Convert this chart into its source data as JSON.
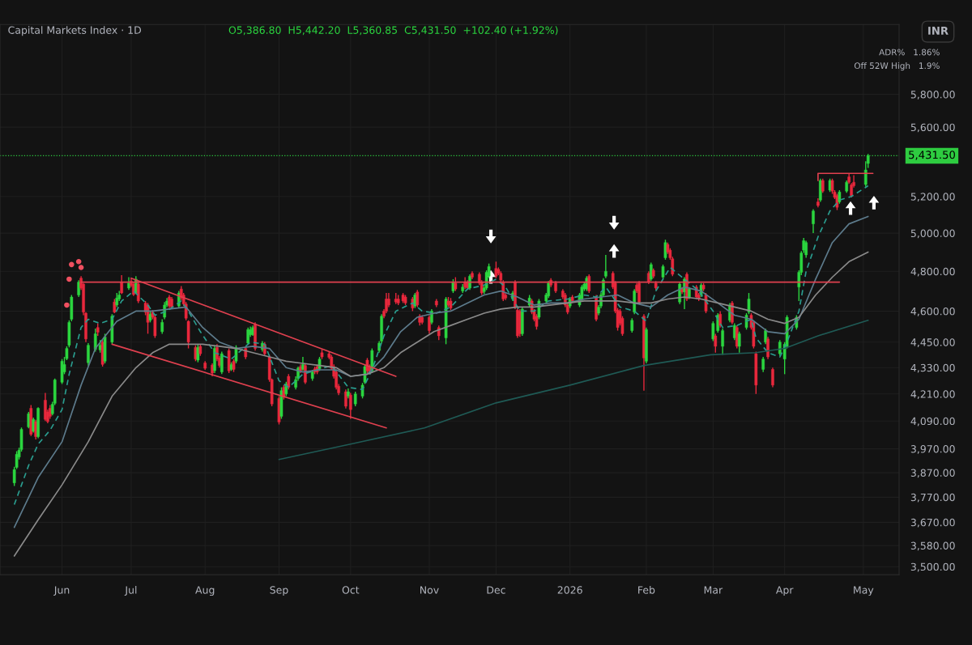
{
  "chart_data": {
    "type": "candlestick",
    "title": "Capital Markets Index · 1D",
    "subtitle": "O5,386.80  H5,442.20  L5,360.85  C5,431.50  +102.40 (+1.92%)",
    "annotations": [
      "ADR%   1.86%",
      "Off 52W High   1.9%",
      "INR"
    ],
    "x": [
      "2025-05-13",
      "2025-05-14",
      "2025-05-15",
      "2025-05-16",
      "2025-05-19",
      "2025-05-20",
      "2025-05-21",
      "2025-05-22",
      "2025-05-23",
      "2025-05-26",
      "2025-05-27",
      "2025-05-28",
      "2025-05-29",
      "2025-05-30",
      "2025-06-02",
      "2025-06-03",
      "2025-06-04",
      "2025-06-05",
      "2025-06-06",
      "2025-06-09",
      "2025-06-10",
      "2025-06-11",
      "2025-06-12",
      "2025-06-13",
      "2025-06-16",
      "2025-06-17",
      "2025-06-18",
      "2025-06-19",
      "2025-06-20",
      "2025-06-23",
      "2025-06-24",
      "2025-06-25",
      "2025-06-26",
      "2025-06-27",
      "2025-06-30",
      "2025-07-01",
      "2025-07-02",
      "2025-07-03",
      "2025-07-04",
      "2025-07-07",
      "2025-07-08",
      "2025-07-09",
      "2025-07-10",
      "2025-07-11",
      "2025-07-14",
      "2025-07-15",
      "2025-07-16",
      "2025-07-17",
      "2025-07-18",
      "2025-07-21",
      "2025-07-22",
      "2025-07-23",
      "2025-07-24",
      "2025-07-25",
      "2025-07-28",
      "2025-07-29",
      "2025-07-30",
      "2025-08-01",
      "2025-08-04",
      "2025-08-05",
      "2025-08-06",
      "2025-08-07",
      "2025-08-08",
      "2025-08-11",
      "2025-08-12",
      "2025-08-13",
      "2025-08-14",
      "2025-08-18",
      "2025-08-19",
      "2025-08-20",
      "2025-08-21",
      "2025-08-22",
      "2025-08-25",
      "2025-08-26",
      "2025-08-28",
      "2025-08-29",
      "2025-09-01",
      "2025-09-02",
      "2025-09-03",
      "2025-09-04",
      "2025-09-05",
      "2025-09-08",
      "2025-09-09",
      "2025-09-10",
      "2025-09-11",
      "2025-09-12",
      "2025-09-15",
      "2025-09-16",
      "2025-09-17",
      "2025-09-18",
      "2025-09-19",
      "2025-09-22",
      "2025-09-23",
      "2025-09-24",
      "2025-09-25",
      "2025-09-26",
      "2025-09-29",
      "2025-09-30",
      "2025-10-01",
      "2025-10-03",
      "2025-10-06",
      "2025-10-07",
      "2025-10-08",
      "2025-10-09",
      "2025-10-10",
      "2025-10-13",
      "2025-10-14",
      "2025-10-15",
      "2025-10-16",
      "2025-10-17",
      "2025-10-20",
      "2025-10-21",
      "2025-10-23",
      "2025-10-24",
      "2025-10-27",
      "2025-10-28",
      "2025-10-29",
      "2025-10-30",
      "2025-10-31",
      "2025-11-03",
      "2025-11-04",
      "2025-11-06",
      "2025-11-07",
      "2025-11-10",
      "2025-11-11",
      "2025-11-12",
      "2025-11-13",
      "2025-11-14",
      "2025-11-17",
      "2025-11-18",
      "2025-11-19",
      "2025-11-20",
      "2025-11-21",
      "2025-11-24",
      "2025-11-25",
      "2025-11-26",
      "2025-11-27",
      "2025-11-28",
      "2025-12-01",
      "2025-12-02",
      "2025-12-03",
      "2025-12-04",
      "2025-12-05",
      "2025-12-08",
      "2025-12-09",
      "2025-12-10",
      "2025-12-11",
      "2025-12-12",
      "2025-12-15",
      "2025-12-16",
      "2025-12-17",
      "2025-12-18",
      "2025-12-19",
      "2025-12-22",
      "2025-12-23",
      "2025-12-24",
      "2025-12-26",
      "2025-12-29",
      "2025-12-30",
      "2025-12-31",
      "2026-01-01",
      "2026-01-02",
      "2026-01-05",
      "2026-01-06",
      "2026-01-07",
      "2026-01-08",
      "2026-01-09",
      "2026-01-12",
      "2026-01-13",
      "2026-01-14",
      "2026-01-15",
      "2026-01-16",
      "2026-01-19",
      "2026-01-20",
      "2026-01-21",
      "2026-01-22",
      "2026-01-23",
      "2026-01-27",
      "2026-01-28",
      "2026-01-29",
      "2026-01-30",
      "2026-02-01",
      "2026-02-02",
      "2026-02-03",
      "2026-02-04",
      "2026-02-05",
      "2026-02-06",
      "2026-02-09",
      "2026-02-10",
      "2026-02-11",
      "2026-02-12",
      "2026-02-13",
      "2026-02-16",
      "2026-02-17",
      "2026-02-18",
      "2026-02-19",
      "2026-02-20",
      "2026-02-23",
      "2026-02-24",
      "2026-02-25",
      "2026-02-26",
      "2026-02-27",
      "2026-03-02",
      "2026-03-03",
      "2026-03-04",
      "2026-03-05",
      "2026-03-06",
      "2026-03-09",
      "2026-03-10",
      "2026-03-11",
      "2026-03-12",
      "2026-03-13",
      "2026-03-16",
      "2026-03-17",
      "2026-03-18",
      "2026-03-19",
      "2026-03-20",
      "2026-03-23",
      "2026-03-24",
      "2026-03-25",
      "2026-03-27",
      "2026-03-30",
      "2026-04-01",
      "2026-04-02",
      "2026-04-06",
      "2026-04-07",
      "2026-04-08",
      "2026-04-09",
      "2026-04-10",
      "2026-04-13",
      "2026-04-15",
      "2026-04-16",
      "2026-04-17",
      "2026-04-20",
      "2026-04-21",
      "2026-04-22",
      "2026-04-23",
      "2026-04-24",
      "2026-04-27",
      "2026-04-28",
      "2026-04-29",
      "2026-04-30",
      "2026-05-05",
      "2026-05-06"
    ],
    "ohlc": [
      [
        3828,
        3895,
        3815,
        3883
      ],
      [
        3892,
        3960,
        3885,
        3947
      ],
      [
        3935,
        3975,
        3925,
        3964
      ],
      [
        3967,
        4062,
        3958,
        4054
      ],
      [
        4064,
        4130,
        4058,
        4122
      ],
      [
        4146,
        4160,
        4025,
        4032
      ],
      [
        4045,
        4105,
        4040,
        4097
      ],
      [
        4087,
        4095,
        4010,
        4022
      ],
      [
        4022,
        4150,
        4015,
        4146
      ],
      [
        4182,
        4215,
        4090,
        4097
      ],
      [
        4130,
        4140,
        4080,
        4087
      ],
      [
        4146,
        4160,
        4100,
        4110
      ],
      [
        4122,
        4175,
        4115,
        4164
      ],
      [
        4168,
        4280,
        4160,
        4274
      ],
      [
        4263,
        4370,
        4255,
        4360
      ],
      [
        4310,
        4380,
        4300,
        4345
      ],
      [
        4372,
        4430,
        4365,
        4420
      ],
      [
        4435,
        4555,
        4425,
        4545
      ],
      [
        4560,
        4680,
        4550,
        4670
      ],
      [
        4680,
        4755,
        4670,
        4745
      ],
      [
        4765,
        4775,
        4705,
        4715
      ],
      [
        4735,
        4740,
        4580,
        4595
      ],
      [
        4590,
        4595,
        4450,
        4465
      ],
      [
        4353,
        4445,
        4340,
        4435
      ],
      [
        4415,
        4515,
        4405,
        4490
      ],
      [
        4520,
        4540,
        4480,
        4497
      ],
      [
        4413,
        4460,
        4400,
        4435
      ],
      [
        4450,
        4460,
        4335,
        4345
      ],
      [
        4360,
        4490,
        4350,
        4475
      ],
      [
        4450,
        4585,
        4440,
        4575
      ],
      [
        4645,
        4660,
        4590,
        4595
      ],
      [
        4630,
        4690,
        4620,
        4665
      ],
      [
        4660,
        4700,
        4650,
        4680
      ],
      [
        4745,
        4780,
        4685,
        4690
      ],
      [
        4715,
        4770,
        4705,
        4740
      ],
      [
        4750,
        4765,
        4720,
        4728
      ],
      [
        4735,
        4745,
        4675,
        4682
      ],
      [
        4690,
        4775,
        4685,
        4760
      ],
      [
        4735,
        4750,
        4640,
        4650
      ],
      [
        4640,
        4650,
        4580,
        4595
      ],
      [
        4630,
        4640,
        4490,
        4545
      ],
      [
        4555,
        4600,
        4545,
        4585
      ],
      [
        4595,
        4605,
        4560,
        4570
      ],
      [
        4570,
        4580,
        4470,
        4480
      ],
      [
        4500,
        4560,
        4490,
        4545
      ],
      [
        4570,
        4645,
        4560,
        4630
      ],
      [
        4630,
        4665,
        4620,
        4650
      ],
      [
        4670,
        4680,
        4615,
        4625
      ],
      [
        4660,
        4670,
        4610,
        4620
      ],
      [
        4625,
        4700,
        4615,
        4690
      ],
      [
        4710,
        4725,
        4655,
        4665
      ],
      [
        4680,
        4690,
        4625,
        4635
      ],
      [
        4635,
        4645,
        4555,
        4565
      ],
      [
        4550,
        4555,
        4420,
        4450
      ],
      [
        4425,
        4435,
        4360,
        4370
      ],
      [
        4365,
        4440,
        4355,
        4425
      ],
      [
        4430,
        4440,
        4385,
        4395
      ],
      [
        4352,
        4360,
        4320,
        4327
      ],
      [
        4342,
        4350,
        4290,
        4305
      ],
      [
        4316,
        4430,
        4305,
        4420
      ],
      [
        4425,
        4440,
        4360,
        4370
      ],
      [
        4375,
        4385,
        4330,
        4340
      ],
      [
        4310,
        4405,
        4300,
        4395
      ],
      [
        4410,
        4420,
        4305,
        4315
      ],
      [
        4322,
        4355,
        4315,
        4345
      ],
      [
        4360,
        4370,
        4310,
        4322
      ],
      [
        4360,
        4435,
        4350,
        4425
      ],
      [
        4420,
        4430,
        4370,
        4380
      ],
      [
        4445,
        4520,
        4440,
        4510
      ],
      [
        4485,
        4525,
        4475,
        4510
      ],
      [
        4485,
        4530,
        4480,
        4520
      ],
      [
        4535,
        4545,
        4410,
        4420
      ],
      [
        4415,
        4455,
        4405,
        4445
      ],
      [
        4440,
        4450,
        4385,
        4395
      ],
      [
        4380,
        4390,
        4265,
        4275
      ],
      [
        4275,
        4280,
        4155,
        4165
      ],
      [
        4190,
        4200,
        4075,
        4085
      ],
      [
        4110,
        4240,
        4100,
        4225
      ],
      [
        4240,
        4250,
        4185,
        4195
      ],
      [
        4210,
        4265,
        4200,
        4255
      ],
      [
        4290,
        4300,
        4230,
        4240
      ],
      [
        4240,
        4290,
        4230,
        4275
      ],
      [
        4280,
        4335,
        4270,
        4328
      ],
      [
        4335,
        4345,
        4305,
        4315
      ],
      [
        4322,
        4380,
        4315,
        4345
      ],
      [
        4340,
        4350,
        4255,
        4263
      ],
      [
        4280,
        4320,
        4270,
        4310
      ],
      [
        4325,
        4335,
        4300,
        4310
      ],
      [
        4335,
        4345,
        4300,
        4310
      ],
      [
        4325,
        4380,
        4315,
        4370
      ],
      [
        4400,
        4415,
        4370,
        4380
      ],
      [
        4395,
        4405,
        4370,
        4378
      ],
      [
        4380,
        4390,
        4320,
        4327
      ],
      [
        4335,
        4345,
        4280,
        4290
      ],
      [
        4310,
        4320,
        4230,
        4240
      ],
      [
        4245,
        4255,
        4205,
        4215
      ],
      [
        4220,
        4230,
        4145,
        4155
      ],
      [
        4200,
        4235,
        4190,
        4220
      ],
      [
        4205,
        4215,
        4100,
        4140
      ],
      [
        4165,
        4220,
        4155,
        4210
      ],
      [
        4200,
        4260,
        4190,
        4250
      ],
      [
        4263,
        4345,
        4255,
        4335
      ],
      [
        4365,
        4375,
        4305,
        4315
      ],
      [
        4335,
        4345,
        4300,
        4310
      ],
      [
        4315,
        4420,
        4305,
        4410
      ],
      [
        4410,
        4455,
        4400,
        4445
      ],
      [
        4455,
        4585,
        4445,
        4575
      ],
      [
        4600,
        4610,
        4565,
        4575
      ],
      [
        4660,
        4690,
        4590,
        4600
      ],
      [
        4660,
        4690,
        4620,
        4630
      ],
      [
        4660,
        4690,
        4635,
        4645
      ],
      [
        4660,
        4680,
        4630,
        4640
      ],
      [
        4680,
        4690,
        4640,
        4650
      ],
      [
        4670,
        4680,
        4630,
        4640
      ],
      [
        4660,
        4670,
        4600,
        4615
      ],
      [
        4625,
        4690,
        4615,
        4680
      ],
      [
        4695,
        4705,
        4620,
        4630
      ],
      [
        4575,
        4585,
        4530,
        4545
      ],
      [
        4570,
        4580,
        4535,
        4545
      ],
      [
        4570,
        4580,
        4490,
        4505
      ],
      [
        4545,
        4610,
        4535,
        4600
      ],
      [
        4650,
        4660,
        4620,
        4630
      ],
      [
        4520,
        4530,
        4460,
        4480
      ],
      [
        4470,
        4670,
        4440,
        4660
      ],
      [
        4650,
        4670,
        4620,
        4630
      ],
      [
        4650,
        4665,
        4605,
        4615
      ],
      [
        4700,
        4760,
        4690,
        4745
      ],
      [
        4740,
        4770,
        4700,
        4710
      ],
      [
        4700,
        4735,
        4690,
        4720
      ],
      [
        4745,
        4770,
        4710,
        4720
      ],
      [
        4745,
        4755,
        4705,
        4715
      ],
      [
        4715,
        4785,
        4705,
        4775
      ],
      [
        4790,
        4800,
        4760,
        4770
      ],
      [
        4785,
        4795,
        4730,
        4740
      ],
      [
        4745,
        4755,
        4680,
        4690
      ],
      [
        4697,
        4725,
        4685,
        4715
      ],
      [
        4715,
        4805,
        4705,
        4795
      ],
      [
        4775,
        4840,
        4765,
        4825
      ],
      [
        4815,
        4850,
        4765,
        4775
      ],
      [
        4810,
        4820,
        4780,
        4790
      ],
      [
        4790,
        4800,
        4745,
        4755
      ],
      [
        4745,
        4755,
        4650,
        4660
      ],
      [
        4680,
        4690,
        4655,
        4665
      ],
      [
        4660,
        4700,
        4650,
        4690
      ],
      [
        4745,
        4755,
        4610,
        4620
      ],
      [
        4605,
        4615,
        4470,
        4480
      ],
      [
        4600,
        4610,
        4475,
        4490
      ],
      [
        4490,
        4620,
        4480,
        4610
      ],
      [
        4630,
        4680,
        4620,
        4665
      ],
      [
        4650,
        4660,
        4585,
        4595
      ],
      [
        4600,
        4610,
        4550,
        4560
      ],
      [
        4575,
        4585,
        4510,
        4525
      ],
      [
        4570,
        4660,
        4560,
        4650
      ],
      [
        4650,
        4690,
        4640,
        4680
      ],
      [
        4675,
        4750,
        4665,
        4740
      ],
      [
        4755,
        4765,
        4720,
        4730
      ],
      [
        4740,
        4750,
        4690,
        4700
      ],
      [
        4700,
        4710,
        4660,
        4670
      ],
      [
        4680,
        4690,
        4620,
        4630
      ],
      [
        4630,
        4640,
        4585,
        4595
      ],
      [
        4625,
        4670,
        4615,
        4660
      ],
      [
        4670,
        4680,
        4640,
        4650
      ],
      [
        4630,
        4690,
        4620,
        4680
      ],
      [
        4660,
        4730,
        4650,
        4720
      ],
      [
        4710,
        4745,
        4700,
        4735
      ],
      [
        4710,
        4775,
        4700,
        4765
      ],
      [
        4775,
        4785,
        4690,
        4700
      ],
      [
        4670,
        4680,
        4550,
        4560
      ],
      [
        4590,
        4630,
        4580,
        4620
      ],
      [
        4625,
        4690,
        4615,
        4680
      ],
      [
        4680,
        4765,
        4670,
        4755
      ],
      [
        4775,
        4885,
        4765,
        4800
      ],
      [
        4790,
        4800,
        4710,
        4720
      ],
      [
        4740,
        4750,
        4590,
        4600
      ],
      [
        4605,
        4615,
        4505,
        4520
      ],
      [
        4600,
        4610,
        4530,
        4540
      ],
      [
        4565,
        4575,
        4480,
        4490
      ],
      [
        4505,
        4565,
        4495,
        4555
      ],
      [
        4595,
        4710,
        4585,
        4700
      ],
      [
        4730,
        4740,
        4690,
        4700
      ],
      [
        4740,
        4750,
        4635,
        4645
      ],
      [
        4575,
        4585,
        4225,
        4375
      ],
      [
        4360,
        4520,
        4350,
        4510
      ],
      [
        4790,
        4800,
        4735,
        4745
      ],
      [
        4760,
        4845,
        4750,
        4835
      ],
      [
        4805,
        4815,
        4765,
        4775
      ],
      [
        4740,
        4750,
        4705,
        4715
      ],
      [
        4770,
        4835,
        4760,
        4825
      ],
      [
        4870,
        4965,
        4860,
        4950
      ],
      [
        4940,
        4950,
        4890,
        4900
      ],
      [
        4910,
        4920,
        4860,
        4870
      ],
      [
        4865,
        4875,
        4775,
        4785
      ],
      [
        4645,
        4745,
        4635,
        4735
      ],
      [
        4710,
        4720,
        4685,
        4695
      ],
      [
        4695,
        4770,
        4610,
        4760
      ],
      [
        4785,
        4795,
        4650,
        4660
      ],
      [
        4670,
        4720,
        4660,
        4710
      ],
      [
        4720,
        4730,
        4660,
        4670
      ],
      [
        4680,
        4690,
        4650,
        4660
      ],
      [
        4680,
        4740,
        4670,
        4730
      ],
      [
        4730,
        4740,
        4700,
        4710
      ],
      [
        4680,
        4690,
        4590,
        4600
      ],
      [
        4465,
        4550,
        4455,
        4540
      ],
      [
        4480,
        4490,
        4400,
        4430
      ],
      [
        4505,
        4590,
        4495,
        4580
      ],
      [
        4585,
        4600,
        4520,
        4530
      ],
      [
        4430,
        4515,
        4390,
        4505
      ],
      [
        4555,
        4640,
        4545,
        4630
      ],
      [
        4640,
        4650,
        4535,
        4545
      ],
      [
        4470,
        4540,
        4460,
        4530
      ],
      [
        4520,
        4530,
        4420,
        4430
      ],
      [
        4430,
        4500,
        4400,
        4490
      ],
      [
        4520,
        4590,
        4510,
        4580
      ],
      [
        4595,
        4690,
        4585,
        4660
      ],
      [
        4580,
        4590,
        4510,
        4520
      ],
      [
        4545,
        4555,
        4420,
        4430
      ],
      [
        4395,
        4405,
        4210,
        4250
      ],
      [
        4322,
        4380,
        4310,
        4370
      ],
      [
        4450,
        4515,
        4440,
        4505
      ],
      [
        4465,
        4475,
        4370,
        4380
      ],
      [
        4322,
        4330,
        4240,
        4250
      ],
      [
        4395,
        4460,
        4385,
        4450
      ],
      [
        4370,
        4450,
        4300,
        4440
      ],
      [
        4430,
        4580,
        4420,
        4570
      ],
      [
        4520,
        4580,
        4510,
        4570
      ],
      [
        4720,
        4805,
        4650,
        4795
      ],
      [
        4795,
        4905,
        4780,
        4895
      ],
      [
        4910,
        4975,
        4895,
        4960
      ],
      [
        4885,
        4960,
        4870,
        4950
      ],
      [
        5050,
        5130,
        5000,
        5120
      ],
      [
        5170,
        5190,
        5140,
        5150
      ],
      [
        5180,
        5300,
        5170,
        5290
      ],
      [
        5290,
        5300,
        5220,
        5230
      ],
      [
        5235,
        5300,
        5225,
        5290
      ],
      [
        5290,
        5300,
        5215,
        5230
      ],
      [
        5225,
        5235,
        5185,
        5195
      ],
      [
        5205,
        5215,
        5125,
        5140
      ],
      [
        5170,
        5235,
        5160,
        5225
      ],
      [
        5230,
        5290,
        5220,
        5280
      ],
      [
        5310,
        5330,
        5270,
        5280
      ],
      [
        5265,
        5275,
        5195,
        5205
      ],
      [
        5280,
        5320,
        5250,
        5260
      ],
      [
        5267,
        5400,
        5255,
        5350
      ],
      [
        5386.8,
        5442.2,
        5360.85,
        5431.5
      ]
    ],
    "series": [
      {
        "type": "line",
        "color": "#2a9d8f",
        "line_style": "dashed",
        "x": [
          "2025-05-13",
          "2025-05-19",
          "2025-05-23",
          "2025-05-28",
          "2025-06-02",
          "2025-06-05",
          "2025-06-10",
          "2025-06-13",
          "2025-06-18",
          "2025-06-23",
          "2025-06-27",
          "2025-07-02",
          "2025-07-08",
          "2025-07-11",
          "2025-07-16",
          "2025-07-22",
          "2025-07-25",
          "2025-07-30",
          "2025-08-05",
          "2025-08-12",
          "2025-08-20",
          "2025-08-26",
          "2025-09-01",
          "2025-09-05",
          "2025-09-11",
          "2025-09-17",
          "2025-09-23",
          "2025-09-30",
          "2025-10-06",
          "2025-10-10",
          "2025-10-15",
          "2025-10-20",
          "2025-10-27",
          "2025-10-31",
          "2025-11-06",
          "2025-11-12",
          "2025-11-19",
          "2025-11-26",
          "2025-12-01",
          "2025-12-05",
          "2025-12-11",
          "2025-12-17",
          "2025-12-23",
          "2025-12-31",
          "2026-01-07",
          "2026-01-12",
          "2026-01-16",
          "2026-01-22",
          "2026-01-28",
          "2026-02-02",
          "2026-02-06",
          "2026-02-12",
          "2026-02-18",
          "2026-02-24",
          "2026-03-02",
          "2026-03-06",
          "2026-03-12",
          "2026-03-18",
          "2026-03-20",
          "2026-03-25",
          "2026-03-30",
          "2026-04-02",
          "2026-04-07",
          "2026-04-10",
          "2026-04-15",
          "2026-04-20",
          "2026-04-24",
          "2026-04-29",
          "2026-05-06"
        ],
        "values": [
          3740,
          3900,
          3990,
          4050,
          4140,
          4300,
          4520,
          4560,
          4540,
          4560,
          4650,
          4700,
          4630,
          4580,
          4600,
          4650,
          4600,
          4500,
          4400,
          4370,
          4450,
          4440,
          4270,
          4240,
          4300,
          4320,
          4340,
          4240,
          4230,
          4320,
          4480,
          4600,
          4640,
          4600,
          4590,
          4620,
          4710,
          4730,
          4760,
          4720,
          4600,
          4600,
          4650,
          4660,
          4680,
          4670,
          4720,
          4620,
          4600,
          4550,
          4700,
          4820,
          4760,
          4700,
          4600,
          4520,
          4530,
          4560,
          4470,
          4400,
          4380,
          4450,
          4600,
          4800,
          4980,
          5120,
          5180,
          5200,
          5260
        ]
      },
      {
        "type": "line",
        "color": "#5d7b8c",
        "line_style": "solid",
        "x": [
          "2025-05-13",
          "2025-05-23",
          "2025-06-02",
          "2025-06-10",
          "2025-06-16",
          "2025-06-25",
          "2025-07-03",
          "2025-07-10",
          "2025-07-17",
          "2025-07-24",
          "2025-07-31",
          "2025-08-07",
          "2025-08-14",
          "2025-08-21",
          "2025-08-28",
          "2025-09-04",
          "2025-09-11",
          "2025-09-18",
          "2025-09-25",
          "2025-10-01",
          "2025-10-08",
          "2025-10-15",
          "2025-10-22",
          "2025-10-29",
          "2025-11-05",
          "2025-11-12",
          "2025-11-19",
          "2025-11-26",
          "2025-12-03",
          "2025-12-10",
          "2025-12-17",
          "2025-12-24",
          "2025-12-31",
          "2026-01-07",
          "2026-01-14",
          "2026-01-21",
          "2026-01-28",
          "2026-02-04",
          "2026-02-11",
          "2026-02-18",
          "2026-02-25",
          "2026-03-04",
          "2026-03-11",
          "2026-03-18",
          "2026-03-25",
          "2026-04-01",
          "2026-04-07",
          "2026-04-14",
          "2026-04-21",
          "2026-04-28",
          "2026-05-06"
        ],
        "values": [
          3650,
          3850,
          4000,
          4250,
          4420,
          4550,
          4600,
          4600,
          4610,
          4620,
          4520,
          4450,
          4420,
          4430,
          4420,
          4330,
          4310,
          4320,
          4320,
          4290,
          4300,
          4380,
          4500,
          4570,
          4590,
          4600,
          4640,
          4680,
          4700,
          4670,
          4630,
          4640,
          4640,
          4660,
          4670,
          4680,
          4640,
          4620,
          4680,
          4720,
          4700,
          4640,
          4580,
          4560,
          4500,
          4490,
          4560,
          4760,
          4950,
          5050,
          5090
        ]
      },
      {
        "type": "line",
        "color": "#8a8a8a",
        "line_style": "solid",
        "x": [
          "2025-05-13",
          "2025-05-23",
          "2025-06-02",
          "2025-06-13",
          "2025-06-23",
          "2025-07-03",
          "2025-07-10",
          "2025-07-17",
          "2025-07-24",
          "2025-07-31",
          "2025-08-07",
          "2025-08-14",
          "2025-08-21",
          "2025-08-28",
          "2025-09-04",
          "2025-09-11",
          "2025-09-18",
          "2025-09-25",
          "2025-10-01",
          "2025-10-08",
          "2025-10-15",
          "2025-10-22",
          "2025-10-29",
          "2025-11-05",
          "2025-11-12",
          "2025-11-19",
          "2025-11-26",
          "2025-12-03",
          "2025-12-10",
          "2025-12-17",
          "2025-12-24",
          "2025-12-31",
          "2026-01-07",
          "2026-01-14",
          "2026-01-21",
          "2026-01-28",
          "2026-02-04",
          "2026-02-11",
          "2026-02-18",
          "2026-02-25",
          "2026-03-04",
          "2026-03-11",
          "2026-03-18",
          "2026-03-25",
          "2026-04-01",
          "2026-04-07",
          "2026-04-14",
          "2026-04-21",
          "2026-04-28",
          "2026-05-06"
        ],
        "values": [
          3540,
          3680,
          3820,
          4000,
          4200,
          4330,
          4400,
          4440,
          4440,
          4440,
          4430,
          4420,
          4400,
          4380,
          4360,
          4350,
          4340,
          4330,
          4290,
          4300,
          4330,
          4400,
          4450,
          4500,
          4530,
          4560,
          4590,
          4610,
          4620,
          4620,
          4630,
          4640,
          4650,
          4650,
          4650,
          4640,
          4640,
          4660,
          4670,
          4660,
          4640,
          4620,
          4600,
          4560,
          4540,
          4570,
          4680,
          4770,
          4850,
          4900
        ]
      },
      {
        "type": "line",
        "color": "#1f5a55",
        "line_style": "solid",
        "x": [
          "2025-09-01",
          "2025-10-01",
          "2025-11-01",
          "2025-12-01",
          "2026-01-01",
          "2026-02-01",
          "2026-03-01",
          "2026-03-20",
          "2026-04-01",
          "2026-04-15",
          "2026-05-06"
        ],
        "values": [
          3925,
          3990,
          4060,
          4170,
          4250,
          4340,
          4390,
          4400,
          4420,
          4480,
          4555
        ]
      },
      {
        "type": "line",
        "color": "#e0404f",
        "line_style": "solid",
        "x": [
          "2025-06-10",
          "2026-04-24"
        ],
        "values": [
          4745,
          4745
        ]
      },
      {
        "type": "line",
        "color": "#e0404f",
        "line_style": "solid",
        "x": [
          "2025-07-01",
          "2025-10-20"
        ],
        "values": [
          4765,
          4290
        ]
      },
      {
        "type": "line",
        "color": "#e0404f",
        "line_style": "solid",
        "x": [
          "2025-06-23",
          "2025-10-16"
        ],
        "values": [
          4440,
          4060
        ]
      },
      {
        "type": "line",
        "color": "#e0404f",
        "line_style": "solid",
        "x": [
          "2026-04-15",
          "2026-04-15",
          "2026-05-08"
        ],
        "values": [
          5290,
          5330,
          5330
        ]
      },
      {
        "type": "scatter",
        "color": "#f05060",
        "marker": "circle",
        "x": [
          "2025-06-04",
          "2025-06-05",
          "2025-06-06",
          "2025-06-09",
          "2025-06-10"
        ],
        "values": [
          4630,
          4760,
          4835,
          4850,
          4820
        ]
      }
    ],
    "ref_lines": [
      {
        "axis": "y",
        "value": 5431.5,
        "label": "5,431.50",
        "color": "#2ecc40",
        "line_style": "dotted"
      }
    ],
    "log": true,
    "grid": true,
    "xlim": [
      "2025-05-07",
      "2026-05-19"
    ],
    "xticks": [
      {
        "value": "2025-06-02",
        "label": "Jun"
      },
      {
        "value": "2025-07-01",
        "label": "Jul"
      },
      {
        "value": "2025-08-01",
        "label": "Aug"
      },
      {
        "value": "2025-09-01",
        "label": "Sep"
      },
      {
        "value": "2025-10-01",
        "label": "Oct"
      },
      {
        "value": "2025-11-03",
        "label": "Nov"
      },
      {
        "value": "2025-12-01",
        "label": "Dec"
      },
      {
        "value": "2026-01-01",
        "label": "2026"
      },
      {
        "value": "2026-02-02",
        "label": "Feb"
      },
      {
        "value": "2026-03-02",
        "label": "Mar"
      },
      {
        "value": "2026-04-01",
        "label": "Apr"
      },
      {
        "value": "2026-05-04",
        "label": "May"
      }
    ],
    "ylim": [
      3470,
      6250
    ],
    "yticks": [
      {
        "value": 3500,
        "label": "3,500.00"
      },
      {
        "value": 3580,
        "label": "3,580.00"
      },
      {
        "value": 3670,
        "label": "3,670.00"
      },
      {
        "value": 3770,
        "label": "3,770.00"
      },
      {
        "value": 3870,
        "label": "3,870.00"
      },
      {
        "value": 3970,
        "label": "3,970.00"
      },
      {
        "value": 4090,
        "label": "4,090.00"
      },
      {
        "value": 4210,
        "label": "4,210.00"
      },
      {
        "value": 4330,
        "label": "4,330.00"
      },
      {
        "value": 4450,
        "label": "4,450.00"
      },
      {
        "value": 4600,
        "label": "4,600.00"
      },
      {
        "value": 4800,
        "label": "4,800.00"
      },
      {
        "value": 5000,
        "label": "5,000.00"
      },
      {
        "value": 5200,
        "label": "5,200.00"
      },
      {
        "value": 5600,
        "label": "5,600.00"
      },
      {
        "value": 5800,
        "label": "5,800.00"
      }
    ]
  }
}
